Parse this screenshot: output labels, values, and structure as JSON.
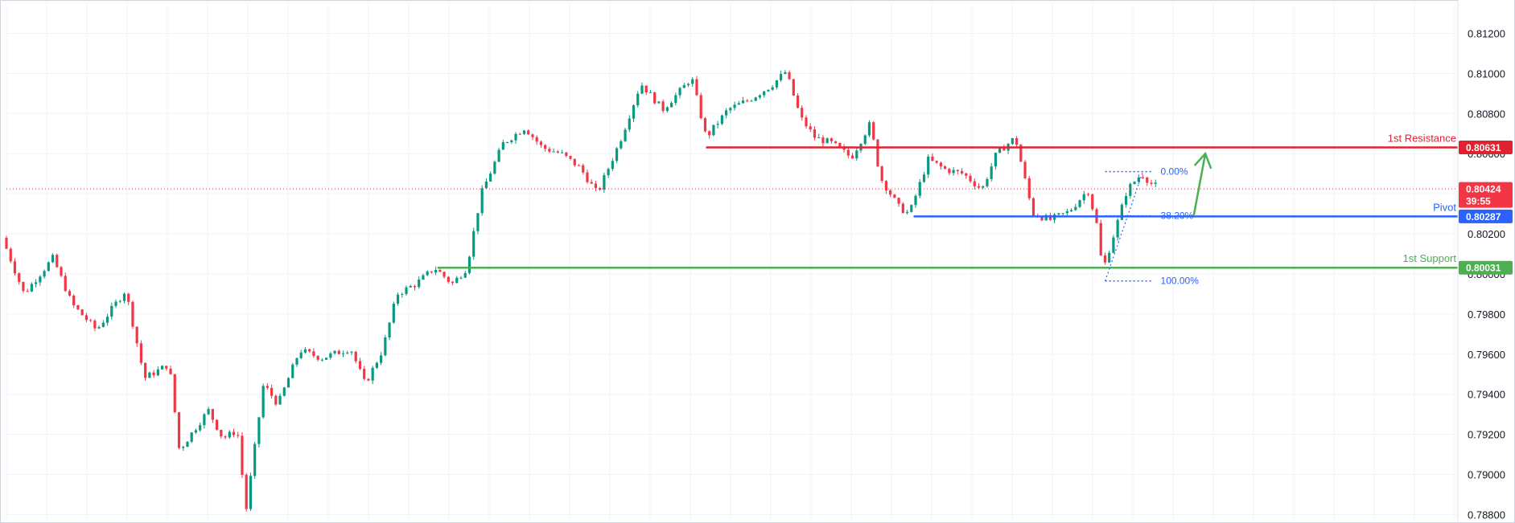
{
  "chart_data": {
    "type": "candlestick",
    "y_axis": {
      "ylim": [
        0.7877,
        0.8135
      ],
      "ticks": [
        "0.81200",
        "0.81000",
        "0.80800",
        "0.80600",
        "0.80400",
        "0.80200",
        "0.80000",
        "0.79800",
        "0.79600",
        "0.79400",
        "0.79200",
        "0.79000",
        "0.78800"
      ]
    },
    "grid": true,
    "levels": [
      {
        "id": "resistance",
        "name": "1st Resistance",
        "value": 0.80631,
        "value_label": "0.80631",
        "color": "#e0212f",
        "start_fraction": 0.482
      },
      {
        "id": "pivot",
        "name": "Pivot",
        "value": 0.80287,
        "value_label": "0.80287",
        "color": "#2962ff",
        "start_fraction": 0.625
      },
      {
        "id": "support",
        "name": "1st Support",
        "value": 0.80031,
        "value_label": "0.80031",
        "color": "#4caf50",
        "start_fraction": 0.297
      }
    ],
    "current_price": {
      "value": 0.80424,
      "value_label": "0.80424",
      "countdown": "39:55",
      "color": "#f23645"
    },
    "fibonacci": [
      {
        "label": "0.00%",
        "value": 0.8051
      },
      {
        "label": "38.20%",
        "value": 0.8029
      },
      {
        "label": "100.00%",
        "value": 0.79965
      }
    ],
    "fib_x_fraction": [
      0.757,
      0.783
    ],
    "arrow": {
      "from": [
        0.818,
        0.8029
      ],
      "to": [
        0.826,
        0.806
      ],
      "color": "#4caf50"
    },
    "colors": {
      "up": "#089981",
      "down": "#f23645"
    },
    "path": [
      [
        0.0,
        0.8018
      ],
      [
        0.015,
        0.799
      ],
      [
        0.035,
        0.8008
      ],
      [
        0.048,
        0.7985
      ],
      [
        0.065,
        0.7972
      ],
      [
        0.085,
        0.7992
      ],
      [
        0.098,
        0.7948
      ],
      [
        0.115,
        0.7955
      ],
      [
        0.122,
        0.7912
      ],
      [
        0.142,
        0.7932
      ],
      [
        0.152,
        0.7918
      ],
      [
        0.162,
        0.7922
      ],
      [
        0.168,
        0.7882
      ],
      [
        0.18,
        0.7945
      ],
      [
        0.19,
        0.7935
      ],
      [
        0.205,
        0.7962
      ],
      [
        0.22,
        0.7958
      ],
      [
        0.24,
        0.7963
      ],
      [
        0.25,
        0.7945
      ],
      [
        0.262,
        0.7962
      ],
      [
        0.272,
        0.799
      ],
      [
        0.285,
        0.7995
      ],
      [
        0.298,
        0.8003
      ],
      [
        0.31,
        0.7995
      ],
      [
        0.32,
        0.8003
      ],
      [
        0.33,
        0.804
      ],
      [
        0.345,
        0.8065
      ],
      [
        0.36,
        0.8073
      ],
      [
        0.372,
        0.8063
      ],
      [
        0.385,
        0.806
      ],
      [
        0.398,
        0.8053
      ],
      [
        0.41,
        0.804
      ],
      [
        0.425,
        0.8065
      ],
      [
        0.44,
        0.8095
      ],
      [
        0.455,
        0.8082
      ],
      [
        0.468,
        0.8092
      ],
      [
        0.475,
        0.8098
      ],
      [
        0.485,
        0.8068
      ],
      [
        0.5,
        0.8082
      ],
      [
        0.515,
        0.8087
      ],
      [
        0.53,
        0.8094
      ],
      [
        0.54,
        0.8101
      ],
      [
        0.55,
        0.8078
      ],
      [
        0.56,
        0.8068
      ],
      [
        0.572,
        0.8065
      ],
      [
        0.585,
        0.8058
      ],
      [
        0.598,
        0.8075
      ],
      [
        0.605,
        0.8048
      ],
      [
        0.618,
        0.8033
      ],
      [
        0.625,
        0.803
      ],
      [
        0.638,
        0.8057
      ],
      [
        0.65,
        0.8052
      ],
      [
        0.662,
        0.805
      ],
      [
        0.675,
        0.8042
      ],
      [
        0.685,
        0.806
      ],
      [
        0.698,
        0.8068
      ],
      [
        0.71,
        0.803
      ],
      [
        0.722,
        0.8027
      ],
      [
        0.735,
        0.8031
      ],
      [
        0.748,
        0.8042
      ],
      [
        0.755,
        0.8022
      ],
      [
        0.758,
        0.8001
      ],
      [
        0.766,
        0.802
      ],
      [
        0.775,
        0.8042
      ],
      [
        0.785,
        0.805
      ],
      [
        0.793,
        0.8044
      ]
    ]
  }
}
